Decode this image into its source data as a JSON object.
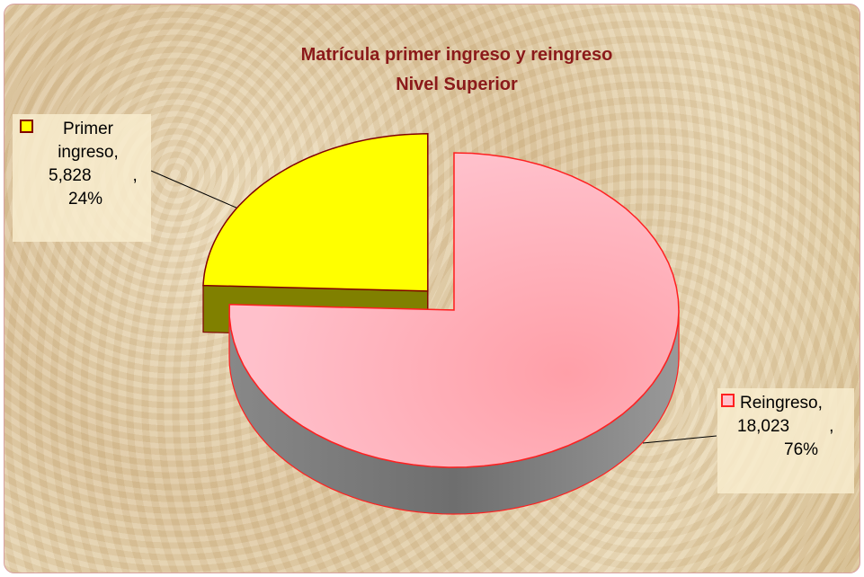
{
  "chart_data": {
    "type": "pie",
    "title": "Matrícula primer ingreso y reingreso",
    "subtitle": "Nivel Superior",
    "categories": [
      "Primer ingreso",
      "Reingreso"
    ],
    "values": [
      5828,
      18023
    ],
    "value_labels": [
      "5,828",
      "18,023"
    ],
    "percentages": [
      24,
      76
    ],
    "percentage_labels": [
      "24%",
      "76%"
    ],
    "label_separator": ",",
    "colors": [
      "#ffff00",
      "#ffc0cb"
    ],
    "side_colors": [
      "#808000",
      "#6e6e6e"
    ],
    "edge_colors": [
      "#800000",
      "#ff2020"
    ],
    "exploded": [
      true,
      false
    ]
  }
}
